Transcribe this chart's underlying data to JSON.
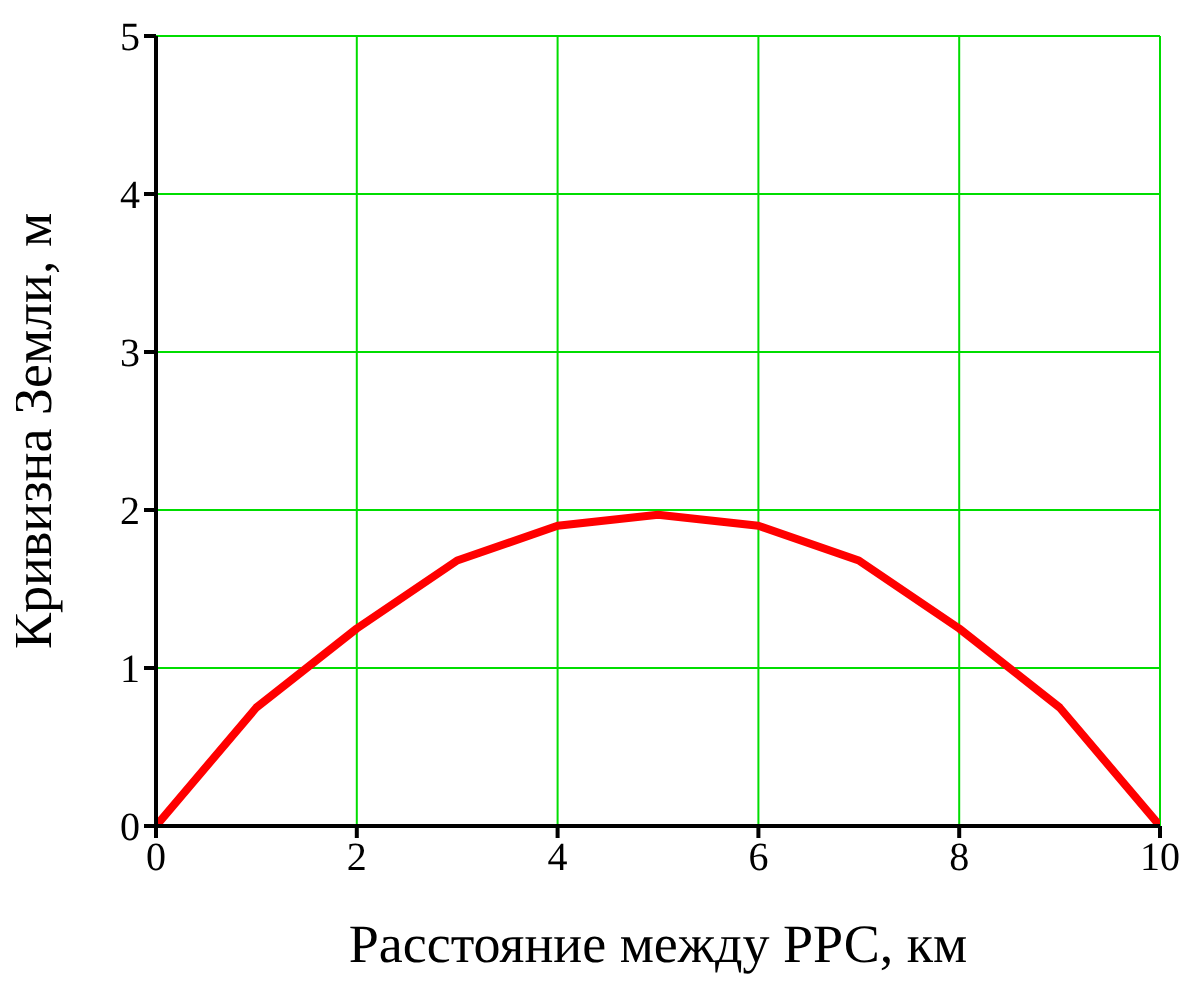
{
  "chart_data": {
    "type": "line",
    "xlabel": "Расстояние между РРС, км",
    "ylabel": "Кривизна Земли, м",
    "x": [
      0,
      1,
      2,
      3,
      4,
      5,
      6,
      7,
      8,
      9,
      10
    ],
    "series": [
      {
        "color": "#ff0000",
        "values": [
          0,
          0.75,
          1.25,
          1.68,
          1.9,
          1.97,
          1.9,
          1.68,
          1.25,
          0.75,
          0
        ]
      }
    ],
    "xlim": [
      0,
      10
    ],
    "xticks": [
      0,
      2,
      4,
      6,
      8,
      10
    ],
    "ylim": [
      0,
      5
    ],
    "yticks": [
      0,
      1,
      2,
      3,
      4,
      5
    ],
    "grid": true,
    "marker": "none",
    "line_style": "solid",
    "legend": false
  }
}
